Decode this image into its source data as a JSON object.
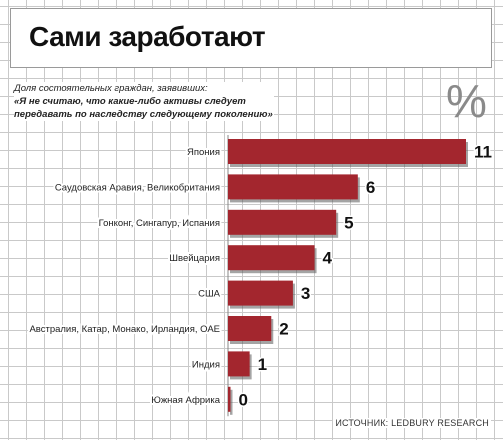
{
  "header": {
    "title": "Сами заработают",
    "subtitle_line1": "Доля состоятельных граждан, заявивших:",
    "subtitle_line2": "«Я не считаю, что какие-либо активы следует передавать по наследству следующему поколению»",
    "unit": "%"
  },
  "footer": {
    "source": "ИСТОЧНИК: LEDBURY RESEARCH"
  },
  "colors": {
    "bar_fill": "#a3262e",
    "bar_shadow": "#5a5a5a"
  },
  "chart_data": {
    "type": "bar",
    "orientation": "horizontal",
    "categories": [
      "Япония",
      "Саудовская Аравия, Великобритания",
      "Гонконг, Сингапур, Испания",
      "Швейцария",
      "США",
      "Австралия, Катар, Монако, Ирландия, ОАЕ",
      "Индия",
      "Южная Африка"
    ],
    "values": [
      11,
      6,
      5,
      4,
      3,
      2,
      1,
      0
    ],
    "value_labels": [
      "11",
      "6",
      "5",
      "4",
      "3",
      "2",
      "1",
      "0"
    ],
    "title": "Сами заработают",
    "xlabel": "",
    "ylabel": "",
    "xlim": [
      0,
      11
    ],
    "grid": true,
    "legend": "none"
  }
}
